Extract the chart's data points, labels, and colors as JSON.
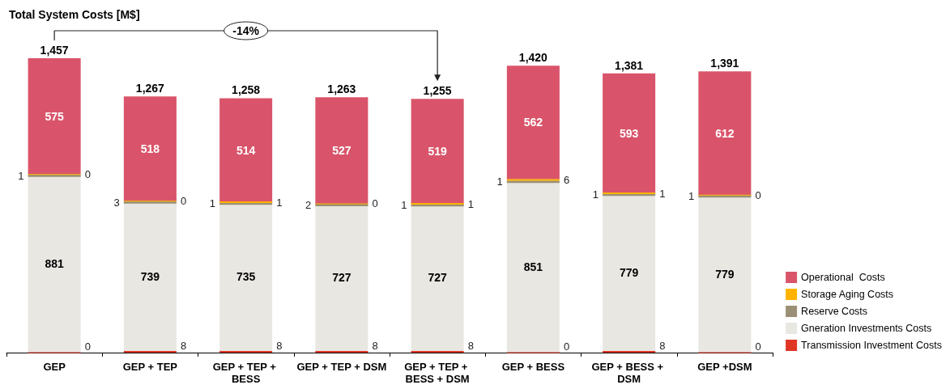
{
  "chart_data": {
    "type": "bar",
    "title": "Total System Costs [M$]",
    "categories": [
      "GEP",
      "GEP + TEP",
      "GEP + TEP + BESS",
      "GEP + TEP + DSM",
      "GEP + TEP + BESS + DSM",
      "GEP + BESS",
      "GEP + BESS + DSM",
      "GEP +DSM"
    ],
    "series": [
      {
        "name": "Transmission Investment Costs",
        "color": "#e03525",
        "values": [
          0,
          8,
          8,
          8,
          8,
          0,
          8,
          0
        ]
      },
      {
        "name": "Gneration Investments Costs",
        "color": "#e8e7e2",
        "values": [
          881,
          739,
          735,
          727,
          727,
          851,
          779,
          779
        ]
      },
      {
        "name": "Reserve Costs",
        "color": "#9a9075",
        "values": [
          1,
          3,
          1,
          2,
          1,
          1,
          1,
          1
        ]
      },
      {
        "name": "Storage Aging Costs",
        "color": "#ffb300",
        "values": [
          0,
          0,
          1,
          0,
          1,
          6,
          1,
          0
        ]
      },
      {
        "name": "Operational  Costs",
        "color": "#d9546a",
        "values": [
          575,
          518,
          514,
          527,
          519,
          562,
          593,
          612
        ]
      }
    ],
    "stacked": true,
    "data_labels": true,
    "totals": [
      "1,457",
      "1,267",
      "1,258",
      "1,263",
      "1,255",
      "1,420",
      "1,381",
      "1,391"
    ],
    "legend": "bottom right",
    "tick_labels": "x",
    "annotations": [
      "-14%"
    ]
  }
}
